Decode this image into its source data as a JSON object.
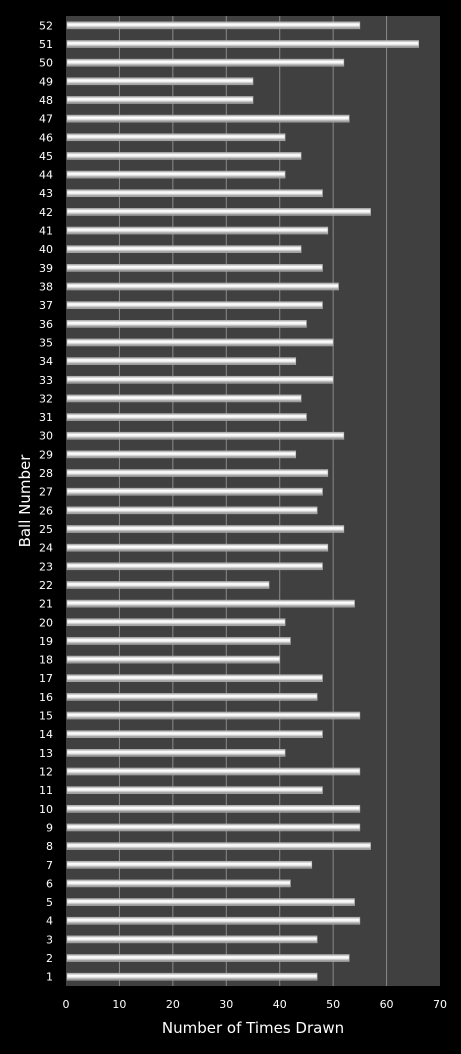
{
  "chart_data": {
    "type": "bar",
    "orientation": "horizontal",
    "xlabel": "Number of Times Drawn",
    "ylabel": "Ball Number",
    "xlim": [
      0,
      70
    ],
    "xticks": [
      0,
      10,
      20,
      30,
      40,
      50,
      60,
      70
    ],
    "grid": true,
    "legend": "none",
    "colors": {
      "background": "#000000",
      "plot_area": "#404040",
      "gridline": "#8a8a8a",
      "bar_light": "#ffffff",
      "bar_dark": "#8c8c8c",
      "text": "#ffffff"
    },
    "categories": [
      "1",
      "2",
      "3",
      "4",
      "5",
      "6",
      "7",
      "8",
      "9",
      "10",
      "11",
      "12",
      "13",
      "14",
      "15",
      "16",
      "17",
      "18",
      "19",
      "20",
      "21",
      "22",
      "23",
      "24",
      "25",
      "26",
      "27",
      "28",
      "29",
      "30",
      "31",
      "32",
      "33",
      "34",
      "35",
      "36",
      "37",
      "38",
      "39",
      "40",
      "41",
      "42",
      "43",
      "44",
      "45",
      "46",
      "47",
      "48",
      "49",
      "50",
      "51",
      "52"
    ],
    "values": [
      47,
      53,
      47,
      55,
      54,
      42,
      46,
      57,
      55,
      55,
      48,
      55,
      41,
      48,
      55,
      47,
      48,
      40,
      42,
      41,
      54,
      38,
      48,
      49,
      52,
      47,
      48,
      49,
      43,
      52,
      45,
      44,
      50,
      43,
      50,
      45,
      48,
      51,
      48,
      44,
      49,
      57,
      48,
      41,
      44,
      41,
      53,
      35,
      35,
      52,
      66,
      55
    ]
  }
}
